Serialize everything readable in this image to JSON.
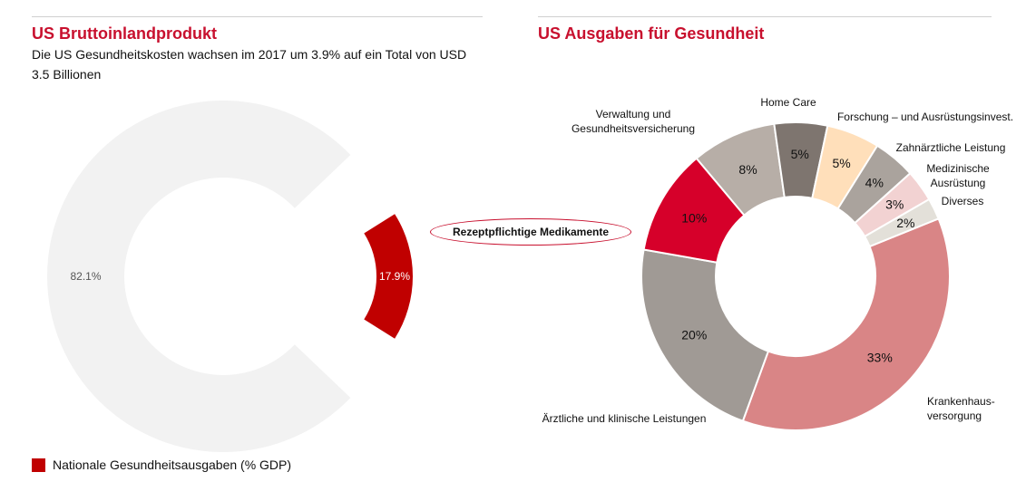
{
  "left": {
    "title": "US Bruttoinlandprodukt",
    "subtitle": "Die US Gesundheitskosten wachsen im 2017 um 3.9% auf ein Total von USD 3.5 Billionen",
    "legend_label": "Nationale Gesundheitsausgaben (% GDP)"
  },
  "right": {
    "title": "US Ausgaben für Gesundheit",
    "callout": "Rezeptpflichtige Medikamente"
  },
  "chart_data": [
    {
      "type": "pie",
      "donut": true,
      "slices": [
        {
          "label": "",
          "value": 82.1,
          "value_label": "82.1%",
          "color": "#f2f2f2",
          "text_color": "#555555"
        },
        {
          "label": "Nationale Gesundheitsausgaben (% GDP)",
          "value": 17.9,
          "value_label": "17.9%",
          "color": "#c00000",
          "text_color": "#ffffff",
          "exploded": true
        }
      ],
      "legend": "bottom-left"
    },
    {
      "type": "pie",
      "donut": true,
      "slices": [
        {
          "label": "Krankenhaus-\nversorgung",
          "value": 33,
          "value_label": "33%",
          "color": "#d98586"
        },
        {
          "label": "Ärztliche und klinische Leistungen",
          "value": 20,
          "value_label": "20%",
          "color": "#a09a95"
        },
        {
          "label": "Rezeptpflichtige Medikamente",
          "value": 10,
          "value_label": "10%",
          "color": "#d6002a"
        },
        {
          "label": "Verwaltung und\nGesundheitsversicherung",
          "value": 8,
          "value_label": "8%",
          "color": "#b7aea7"
        },
        {
          "label": "Home Care",
          "value": 5,
          "value_label": "5%",
          "color": "#7e756f"
        },
        {
          "label": "Forschung – und Ausrüstungsinvest.",
          "value": 5,
          "value_label": "5%",
          "color": "#ffdfba"
        },
        {
          "label": "Zahnärztliche Leistung",
          "value": 4,
          "value_label": "4%",
          "color": "#aaa39d"
        },
        {
          "label": "Medizinische\nAusrüstung",
          "value": 3,
          "value_label": "3%",
          "color": "#f2d2d2"
        },
        {
          "label": "Diverses",
          "value": 2,
          "value_label": "2%",
          "color": "#e3e0d9"
        }
      ]
    }
  ]
}
